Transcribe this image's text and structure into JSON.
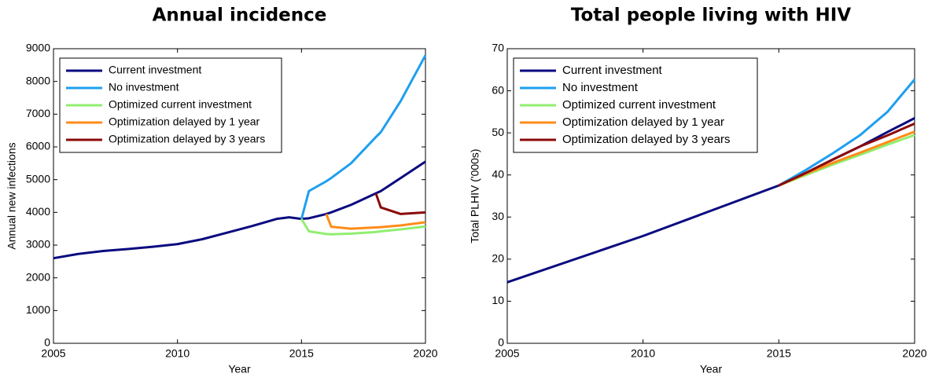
{
  "chart_data": [
    {
      "type": "line",
      "title": "Annual incidence",
      "xlabel": "Year",
      "ylabel": "Annual new infections",
      "x": [
        2005,
        2006,
        2007,
        2008,
        2009,
        2010,
        2011,
        2012,
        2013,
        2014,
        2014.5,
        2015,
        2015.3,
        2016,
        2016.2,
        2017,
        2018,
        2018.2,
        2019,
        2020
      ],
      "xlim": [
        2005,
        2020
      ],
      "xticks": [
        2005,
        2010,
        2015,
        2020
      ],
      "ylim": [
        0,
        9000
      ],
      "yticks": [
        0,
        1000,
        2000,
        3000,
        4000,
        5000,
        6000,
        7000,
        8000,
        9000
      ],
      "legend": "upper left",
      "series": [
        {
          "name": "Current investment",
          "color": "#0a0a80",
          "values": [
            2600,
            2730,
            2820,
            2880,
            2950,
            3030,
            3180,
            3380,
            3580,
            3800,
            3850,
            3800,
            3820,
            3950,
            4000,
            4230,
            4580,
            4650,
            5050,
            5550
          ]
        },
        {
          "name": "No investment",
          "color": "#1e9fef",
          "values": [
            null,
            null,
            null,
            null,
            null,
            null,
            null,
            null,
            null,
            null,
            null,
            3800,
            4650,
            4950,
            5050,
            5500,
            6300,
            6450,
            7400,
            8800
          ]
        },
        {
          "name": "Optimized current investment",
          "color": "#90ee70",
          "values": [
            null,
            null,
            null,
            null,
            null,
            null,
            null,
            null,
            null,
            null,
            null,
            3800,
            3420,
            3340,
            3330,
            3350,
            3400,
            3420,
            3480,
            3570
          ]
        },
        {
          "name": "Optimization delayed by 1 year",
          "color": "#ff8c1a",
          "values": [
            null,
            null,
            null,
            null,
            null,
            null,
            null,
            null,
            null,
            null,
            null,
            null,
            null,
            3950,
            3560,
            3500,
            3540,
            3550,
            3600,
            3700
          ]
        },
        {
          "name": "Optimization delayed by 3 years",
          "color": "#8b0a0a",
          "values": [
            null,
            null,
            null,
            null,
            null,
            null,
            null,
            null,
            null,
            null,
            null,
            null,
            null,
            null,
            null,
            null,
            4580,
            4150,
            3950,
            4000
          ]
        }
      ]
    },
    {
      "type": "line",
      "title": "Total people living with HIV",
      "xlabel": "Year",
      "ylabel": "Total PLHIV ('000s)",
      "x": [
        2005,
        2010,
        2015,
        2016,
        2017,
        2018,
        2019,
        2020
      ],
      "xlim": [
        2005,
        2020
      ],
      "xticks": [
        2005,
        2010,
        2015,
        2020
      ],
      "ylim": [
        0,
        70
      ],
      "yticks": [
        0,
        10,
        20,
        30,
        40,
        50,
        60,
        70
      ],
      "legend": "upper left",
      "series": [
        {
          "name": "Current investment",
          "color": "#0a0a80",
          "values": [
            14.5,
            25.5,
            37.5,
            40.5,
            43.7,
            46.8,
            50.2,
            53.5
          ]
        },
        {
          "name": "No investment",
          "color": "#1e9fef",
          "values": [
            null,
            null,
            37.5,
            41.2,
            45.2,
            49.5,
            55.0,
            62.7
          ]
        },
        {
          "name": "Optimized current investment",
          "color": "#90ee70",
          "values": [
            null,
            null,
            37.5,
            40.0,
            42.5,
            44.8,
            47.2,
            49.5
          ]
        },
        {
          "name": "Optimization delayed by 1 year",
          "color": "#ff8c1a",
          "values": [
            null,
            null,
            37.5,
            40.3,
            42.9,
            45.3,
            47.8,
            50.3
          ]
        },
        {
          "name": "Optimization delayed by 3 years",
          "color": "#8b0a0a",
          "values": [
            null,
            null,
            37.5,
            40.5,
            43.7,
            46.8,
            49.4,
            52.2
          ]
        }
      ]
    }
  ]
}
